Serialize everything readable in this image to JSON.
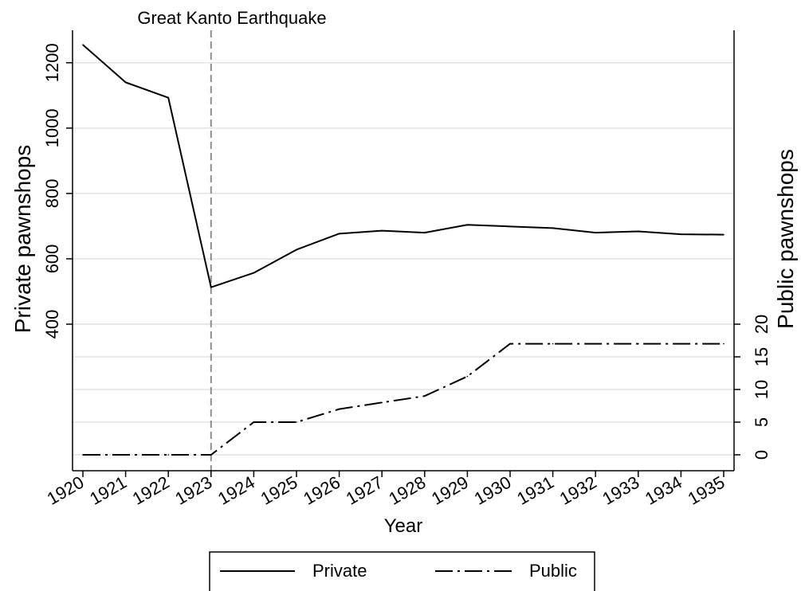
{
  "chart_data": {
    "type": "line",
    "x": [
      "1920",
      "1921",
      "1922",
      "1923",
      "1924",
      "1925",
      "1926",
      "1927",
      "1928",
      "1929",
      "1930",
      "1931",
      "1932",
      "1933",
      "1934",
      "1935"
    ],
    "xlabel": "Year",
    "ylabel_left": "Private pawnshops",
    "ylabel_right": "Public pawnshops",
    "yticks_left": [
      400,
      600,
      800,
      1000,
      1200
    ],
    "yticks_right": [
      0,
      5,
      10,
      15,
      20
    ],
    "series": [
      {
        "name": "Private",
        "axis": "left",
        "style": "solid",
        "values": [
          1255,
          1140,
          1093,
          513,
          557,
          628,
          677,
          686,
          680,
          704,
          699,
          694,
          680,
          684,
          675,
          674
        ]
      },
      {
        "name": "Public",
        "axis": "right",
        "style": "dash-dot",
        "values": [
          0,
          0,
          0,
          0,
          5,
          5,
          7,
          8,
          9,
          12,
          17,
          17,
          17,
          17,
          17,
          17
        ]
      }
    ],
    "annotations": [
      {
        "text": "Great Kanto Earthquake",
        "x": "1923",
        "line": "dashed vertical"
      }
    ],
    "grid": true,
    "legend": "bottom",
    "colors": {
      "line": "#000000",
      "grid": "#e4e4e4",
      "event_line": "#8c8c8c"
    }
  }
}
